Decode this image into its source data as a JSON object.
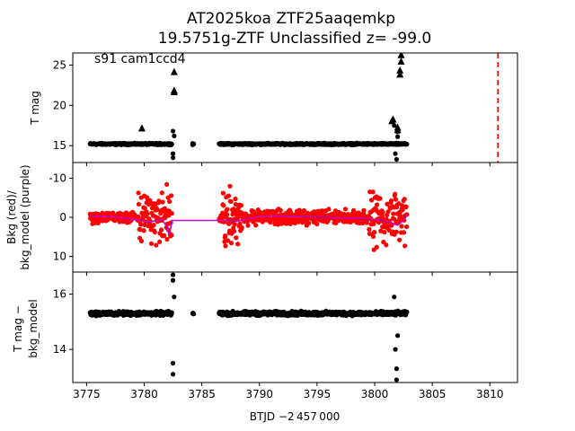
{
  "figure": {
    "title_line1": "AT2025koa  ZTF25aaqemkp",
    "title_line2": "19.5751g-ZTF Unclassified z= -99.0",
    "annotation": "s91 cam1ccd4",
    "xlabel": "BTJD −2 457 000"
  },
  "chart_data": [
    {
      "panel": "top",
      "type": "scatter",
      "ylabel": "T mag",
      "ylim": [
        26.5,
        12.9
      ],
      "yticks": [
        15,
        20,
        25
      ],
      "xlim": [
        3773.8,
        3812.4
      ],
      "xticks": [
        3775,
        3780,
        3785,
        3790,
        3795,
        3800,
        3805,
        3810
      ],
      "series": [
        {
          "kind": "points",
          "color": "#000000",
          "segments": [
            [
              3775.3,
              3782.4,
              15.2
            ],
            [
              3784.2,
              3784.3,
              15.2
            ],
            [
              3786.5,
              3802.8,
              15.2
            ]
          ],
          "extra": [
            [
              3782.5,
              13.5
            ],
            [
              3782.5,
              14.0
            ],
            [
              3782.6,
              16.2
            ],
            [
              3782.5,
              16.8
            ],
            [
              3784.2,
              15.1
            ],
            [
              3801.9,
              12.7
            ],
            [
              3801.9,
              13.3
            ],
            [
              3801.8,
              14.0
            ],
            [
              3802.0,
              16.1
            ],
            [
              3802.0,
              16.7
            ],
            [
              3801.7,
              17.5
            ]
          ]
        },
        {
          "kind": "upper-limit-triangles",
          "color": "#000000",
          "points": [
            [
              3779.8,
              17.2
            ],
            [
              3782.6,
              21.7
            ],
            [
              3782.6,
              21.9
            ],
            [
              3782.6,
              24.2
            ],
            [
              3801.5,
              18.1
            ],
            [
              3801.6,
              18.3
            ],
            [
              3802.0,
              17.0
            ],
            [
              3802.0,
              17.3
            ],
            [
              3802.2,
              23.9
            ],
            [
              3802.2,
              24.4
            ],
            [
              3802.3,
              25.5
            ],
            [
              3802.3,
              26.3
            ]
          ]
        }
      ],
      "vline": {
        "x": 3810.7,
        "color": "#ff0000",
        "style": "dashed"
      }
    },
    {
      "panel": "middle",
      "type": "scatter",
      "ylabel_line1": "Bkg (red)/",
      "ylabel_line2": "bkg_model (purple)",
      "ylim": [
        -14.0,
        14.0
      ],
      "yticks": [
        -10,
        0,
        10
      ],
      "series": [
        {
          "name": "Bkg",
          "kind": "points",
          "color": "#ff0000"
        },
        {
          "name": "bkg_model",
          "kind": "line",
          "color": "#bf00bf",
          "x": [
            3775.3,
            3777.0,
            3778.5,
            3779.5,
            3780.5,
            3781.5,
            3782.0,
            3782.2,
            3782.4,
            3787.0,
            3788.0,
            3789.5,
            3791.0,
            3793.0,
            3796.0,
            3799.0,
            3800.5,
            3801.5,
            3802.0,
            3802.5,
            3802.8
          ],
          "y": [
            -0.4,
            -0.2,
            0.3,
            0.8,
            1.2,
            0.5,
            2.5,
            4.5,
            0.8,
            0.8,
            1.0,
            0.0,
            -0.4,
            -0.2,
            0.0,
            0.3,
            0.7,
            1.5,
            2.0,
            0.8,
            -0.6
          ]
        }
      ]
    },
    {
      "panel": "bottom",
      "type": "scatter",
      "ylabel_line1": "T mag −",
      "ylabel_line2": "bkg_model",
      "ylim": [
        16.8,
        12.8
      ],
      "yticks": [
        14,
        16
      ],
      "series": [
        {
          "kind": "points",
          "color": "#000000",
          "segments": [
            [
              3775.3,
              3782.4,
              15.3
            ],
            [
              3784.2,
              3784.3,
              15.3
            ],
            [
              3786.5,
              3802.8,
              15.3
            ]
          ],
          "extra": [
            [
              3782.5,
              13.1
            ],
            [
              3782.5,
              13.5
            ],
            [
              3782.6,
              15.9
            ],
            [
              3782.5,
              16.5
            ],
            [
              3782.5,
              16.7
            ],
            [
              3801.9,
              12.9
            ],
            [
              3801.9,
              13.3
            ],
            [
              3801.8,
              14.0
            ],
            [
              3802.0,
              14.5
            ],
            [
              3801.7,
              15.9
            ]
          ]
        }
      ]
    }
  ]
}
